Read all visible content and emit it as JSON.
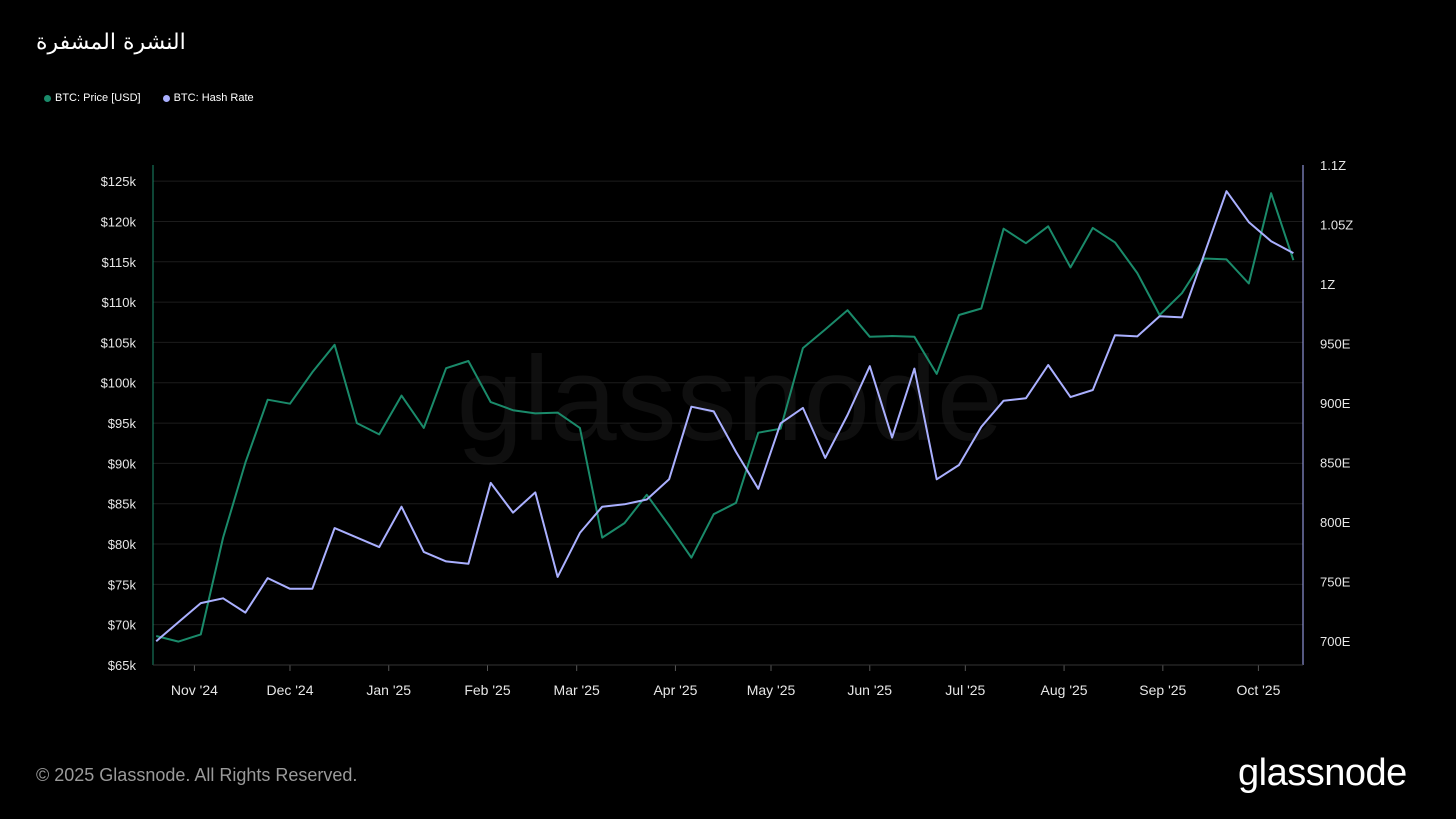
{
  "title": "النشرة المشفرة",
  "footer": "© 2025 Glassnode. All Rights Reserved.",
  "brand": "glassnode",
  "watermark": "glassnode",
  "colors": {
    "price": "#1a8a6a",
    "hashrate": "#aab0ff",
    "background": "#000000"
  },
  "chart_data": {
    "type": "line",
    "legend_position": "top-left",
    "grid": true,
    "x_tick_labels": [
      "Nov '24",
      "Dec '24",
      "Jan '25",
      "Feb '25",
      "Mar '25",
      "Apr '25",
      "May '25",
      "Jun '25",
      "Jul '25",
      "Aug '25",
      "Sep '25",
      "Oct '25"
    ],
    "x": [
      "2024-10-20",
      "2024-10-27",
      "2024-11-03",
      "2024-11-10",
      "2024-11-17",
      "2024-11-24",
      "2024-12-01",
      "2024-12-08",
      "2024-12-15",
      "2024-12-22",
      "2024-12-29",
      "2025-01-05",
      "2025-01-12",
      "2025-01-19",
      "2025-01-26",
      "2025-02-02",
      "2025-02-09",
      "2025-02-16",
      "2025-02-23",
      "2025-03-02",
      "2025-03-09",
      "2025-03-16",
      "2025-03-23",
      "2025-03-30",
      "2025-04-06",
      "2025-04-13",
      "2025-04-20",
      "2025-04-27",
      "2025-05-04",
      "2025-05-11",
      "2025-05-18",
      "2025-05-25",
      "2025-06-01",
      "2025-06-08",
      "2025-06-15",
      "2025-06-22",
      "2025-06-29",
      "2025-07-06",
      "2025-07-13",
      "2025-07-20",
      "2025-07-27",
      "2025-08-03",
      "2025-08-10",
      "2025-08-17",
      "2025-08-24",
      "2025-08-31",
      "2025-09-07",
      "2025-09-14",
      "2025-09-21",
      "2025-09-28",
      "2025-10-05",
      "2025-10-12"
    ],
    "series": [
      {
        "name": "BTC: Price [USD]",
        "axis": "left",
        "values": [
          68600,
          67900,
          68800,
          80800,
          90100,
          97900,
          97400,
          101300,
          104700,
          95000,
          93600,
          98400,
          94400,
          101800,
          102700,
          97600,
          96600,
          96200,
          96300,
          94400,
          80800,
          82600,
          86100,
          82300,
          78300,
          83700,
          85100,
          93800,
          94300,
          104300,
          106600,
          109000,
          105700,
          105800,
          105700,
          101100,
          108400,
          109200,
          119100,
          117300,
          119400,
          114300,
          119200,
          117400,
          113600,
          108400,
          111100,
          115400,
          115300,
          112300,
          123500,
          115200
        ]
      },
      {
        "name": "BTC: Hash Rate",
        "axis": "right",
        "values": [
          700,
          716,
          732,
          736,
          724,
          753,
          744,
          744,
          795,
          787,
          779,
          813,
          775,
          767,
          765,
          833,
          808,
          825,
          754,
          791,
          813,
          815,
          819,
          836,
          897,
          893,
          859,
          828,
          883,
          896,
          854,
          890,
          931,
          871,
          929,
          836,
          848,
          880,
          902,
          904,
          932,
          905,
          911,
          957,
          956,
          973,
          972,
          1025,
          1078,
          1052,
          1036,
          1026
        ]
      }
    ],
    "y_left": {
      "ticks": [
        "$65k",
        "$70k",
        "$75k",
        "$80k",
        "$85k",
        "$90k",
        "$95k",
        "$100k",
        "$105k",
        "$110k",
        "$115k",
        "$120k",
        "$125k"
      ],
      "range": [
        65000,
        127000
      ]
    },
    "y_right": {
      "ticks": [
        "700E",
        "750E",
        "800E",
        "850E",
        "900E",
        "950E",
        "1Z",
        "1.05Z",
        "1.1Z"
      ],
      "range": [
        680,
        1100
      ]
    }
  }
}
